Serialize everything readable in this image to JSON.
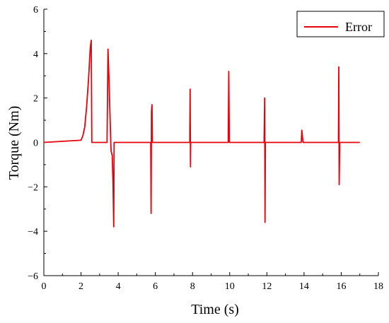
{
  "chart_data": {
    "type": "line",
    "title": "",
    "xlabel": "Time (s)",
    "ylabel": "Torque  (Nm)",
    "xlim": [
      0,
      18
    ],
    "ylim": [
      -6,
      6
    ],
    "x_ticks": [
      0,
      2,
      4,
      6,
      8,
      10,
      12,
      14,
      16,
      18
    ],
    "x_tick_labels": [
      "0",
      "2",
      "4",
      "6",
      "8",
      "10",
      "12",
      "14",
      "16",
      "18"
    ],
    "y_ticks": [
      -6,
      -4,
      -2,
      0,
      2,
      4,
      6
    ],
    "y_tick_labels": [
      "−6",
      "−4",
      "−2",
      "0",
      "2",
      "4",
      "6"
    ],
    "grid": false,
    "legend_position": "top-right",
    "series": [
      {
        "name": "Error",
        "color": "#e8000b",
        "x": [
          0,
          2.0,
          2.1,
          2.2,
          2.3,
          2.4,
          2.5,
          2.55,
          2.58,
          2.6,
          3.4,
          3.45,
          3.5,
          3.6,
          3.62,
          3.68,
          3.72,
          3.76,
          3.78,
          3.8,
          3.82,
          5.75,
          5.77,
          5.79,
          5.82,
          5.84,
          5.86,
          7.85,
          7.87,
          7.89,
          7.9,
          7.92,
          9.92,
          9.95,
          9.98,
          11.85,
          11.88,
          11.9,
          11.92,
          11.94,
          13.85,
          13.88,
          13.92,
          13.95,
          15.85,
          15.87,
          15.89,
          15.92,
          15.94,
          17.0
        ],
        "y": [
          0,
          0.1,
          0.3,
          0.7,
          1.6,
          2.8,
          4.3,
          4.6,
          0,
          0,
          0,
          4.2,
          3.0,
          0,
          -0.4,
          -0.6,
          -1.8,
          -3.8,
          0,
          0,
          0,
          0,
          -3.2,
          1.4,
          1.7,
          0,
          0,
          0,
          2.4,
          -1.1,
          0,
          0,
          0,
          3.2,
          0,
          0,
          2.0,
          -3.6,
          0,
          0,
          0,
          0.55,
          0.2,
          0,
          0,
          3.4,
          -1.9,
          0,
          0,
          0
        ]
      }
    ]
  }
}
